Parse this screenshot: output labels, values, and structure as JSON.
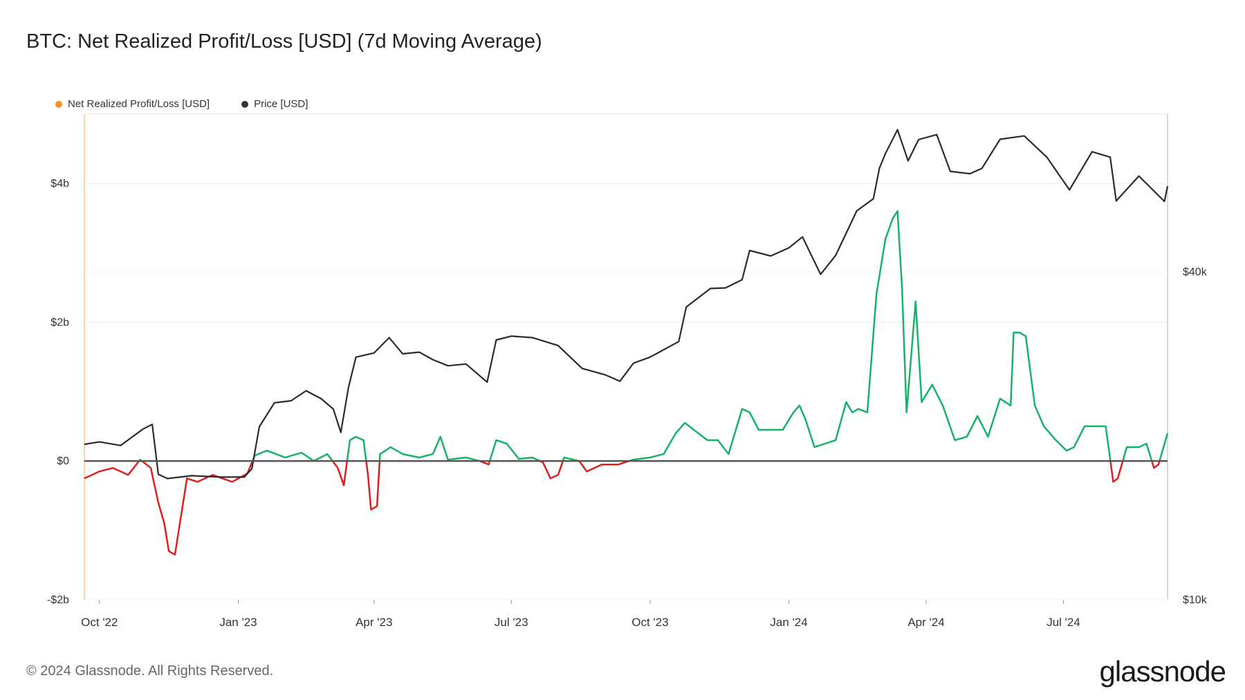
{
  "title": "BTC: Net Realized Profit/Loss [USD] (7d Moving Average)",
  "footer": "© 2024 Glassnode. All Rights Reserved.",
  "brand": "glassnode",
  "legend": [
    {
      "label": "Net Realized Profit/Loss [USD]",
      "color": "#f7931a"
    },
    {
      "label": "Price [USD]",
      "color": "#333333"
    }
  ],
  "chart_data": {
    "type": "line",
    "x_tick_labels": [
      "Oct '22",
      "Jan '23",
      "Apr '23",
      "Jul '23",
      "Oct '23",
      "Jan '24",
      "Apr '24",
      "Jul '24"
    ],
    "x_tick_dates": [
      "2022-10-01",
      "2023-01-01",
      "2023-04-01",
      "2023-07-01",
      "2023-10-01",
      "2024-01-01",
      "2024-04-01",
      "2024-07-01"
    ],
    "x_range": [
      "2022-09-21",
      "2024-09-08"
    ],
    "left_axis": {
      "ticks": [
        -2,
        0,
        2,
        4
      ],
      "tick_labels": [
        "-$2b",
        "$0",
        "$2b",
        "$4b"
      ],
      "range": [
        -2,
        5
      ]
    },
    "right_axis": {
      "scale": "log",
      "ticks": [
        10000,
        40000
      ],
      "tick_labels": [
        "$10k",
        "$40k"
      ],
      "range": [
        10000,
        78000
      ]
    },
    "colors": {
      "profit": "#17b26a",
      "loss": "#e01e1e",
      "price": "#2b2b2b",
      "zero_line": "#555555"
    },
    "series": [
      {
        "name": "Net Realized Profit/Loss [USD]",
        "unit": "billion USD",
        "points": [
          [
            "2022-09-21",
            -0.25
          ],
          [
            "2022-10-01",
            -0.15
          ],
          [
            "2022-10-10",
            -0.1
          ],
          [
            "2022-10-20",
            -0.2
          ],
          [
            "2022-10-28",
            0.02
          ],
          [
            "2022-11-04",
            -0.1
          ],
          [
            "2022-11-09",
            -0.6
          ],
          [
            "2022-11-13",
            -0.9
          ],
          [
            "2022-11-16",
            -1.3
          ],
          [
            "2022-11-20",
            -1.35
          ],
          [
            "2022-11-24",
            -0.8
          ],
          [
            "2022-11-28",
            -0.25
          ],
          [
            "2022-12-05",
            -0.3
          ],
          [
            "2022-12-15",
            -0.2
          ],
          [
            "2022-12-28",
            -0.3
          ],
          [
            "2023-01-07",
            -0.18
          ],
          [
            "2023-01-12",
            0.08
          ],
          [
            "2023-01-20",
            0.15
          ],
          [
            "2023-02-01",
            0.05
          ],
          [
            "2023-02-12",
            0.12
          ],
          [
            "2023-02-20",
            0.0
          ],
          [
            "2023-03-01",
            0.1
          ],
          [
            "2023-03-08",
            -0.1
          ],
          [
            "2023-03-12",
            -0.35
          ],
          [
            "2023-03-16",
            0.3
          ],
          [
            "2023-03-20",
            0.35
          ],
          [
            "2023-03-25",
            0.3
          ],
          [
            "2023-03-28",
            -0.2
          ],
          [
            "2023-03-30",
            -0.7
          ],
          [
            "2023-04-03",
            -0.65
          ],
          [
            "2023-04-05",
            0.1
          ],
          [
            "2023-04-12",
            0.2
          ],
          [
            "2023-04-20",
            0.1
          ],
          [
            "2023-05-01",
            0.05
          ],
          [
            "2023-05-10",
            0.1
          ],
          [
            "2023-05-15",
            0.35
          ],
          [
            "2023-05-20",
            0.02
          ],
          [
            "2023-06-01",
            0.05
          ],
          [
            "2023-06-10",
            0.0
          ],
          [
            "2023-06-16",
            -0.05
          ],
          [
            "2023-06-21",
            0.3
          ],
          [
            "2023-06-28",
            0.25
          ],
          [
            "2023-07-06",
            0.03
          ],
          [
            "2023-07-15",
            0.05
          ],
          [
            "2023-07-22",
            -0.02
          ],
          [
            "2023-07-27",
            -0.25
          ],
          [
            "2023-08-01",
            -0.2
          ],
          [
            "2023-08-05",
            0.05
          ],
          [
            "2023-08-15",
            0.0
          ],
          [
            "2023-08-20",
            -0.15
          ],
          [
            "2023-08-30",
            -0.05
          ],
          [
            "2023-09-10",
            -0.05
          ],
          [
            "2023-09-20",
            0.02
          ],
          [
            "2023-10-01",
            0.05
          ],
          [
            "2023-10-10",
            0.1
          ],
          [
            "2023-10-18",
            0.4
          ],
          [
            "2023-10-24",
            0.55
          ],
          [
            "2023-10-30",
            0.45
          ],
          [
            "2023-11-08",
            0.3
          ],
          [
            "2023-11-15",
            0.3
          ],
          [
            "2023-11-22",
            0.1
          ],
          [
            "2023-12-01",
            0.75
          ],
          [
            "2023-12-06",
            0.7
          ],
          [
            "2023-12-12",
            0.45
          ],
          [
            "2023-12-20",
            0.45
          ],
          [
            "2023-12-28",
            0.45
          ],
          [
            "2024-01-04",
            0.7
          ],
          [
            "2024-01-08",
            0.8
          ],
          [
            "2024-01-12",
            0.6
          ],
          [
            "2024-01-18",
            0.2
          ],
          [
            "2024-01-25",
            0.25
          ],
          [
            "2024-02-01",
            0.3
          ],
          [
            "2024-02-08",
            0.85
          ],
          [
            "2024-02-12",
            0.7
          ],
          [
            "2024-02-16",
            0.75
          ],
          [
            "2024-02-22",
            0.7
          ],
          [
            "2024-02-28",
            2.4
          ],
          [
            "2024-03-05",
            3.2
          ],
          [
            "2024-03-10",
            3.5
          ],
          [
            "2024-03-13",
            3.6
          ],
          [
            "2024-03-16",
            2.5
          ],
          [
            "2024-03-19",
            0.7
          ],
          [
            "2024-03-25",
            2.3
          ],
          [
            "2024-03-29",
            0.85
          ],
          [
            "2024-04-05",
            1.1
          ],
          [
            "2024-04-12",
            0.8
          ],
          [
            "2024-04-20",
            0.3
          ],
          [
            "2024-04-28",
            0.35
          ],
          [
            "2024-05-05",
            0.65
          ],
          [
            "2024-05-12",
            0.35
          ],
          [
            "2024-05-20",
            0.9
          ],
          [
            "2024-05-27",
            0.8
          ],
          [
            "2024-05-29",
            1.85
          ],
          [
            "2024-06-02",
            1.85
          ],
          [
            "2024-06-06",
            1.8
          ],
          [
            "2024-06-12",
            0.8
          ],
          [
            "2024-06-18",
            0.5
          ],
          [
            "2024-06-26",
            0.3
          ],
          [
            "2024-07-03",
            0.15
          ],
          [
            "2024-07-08",
            0.2
          ],
          [
            "2024-07-15",
            0.5
          ],
          [
            "2024-07-22",
            0.5
          ],
          [
            "2024-07-29",
            0.5
          ],
          [
            "2024-08-03",
            -0.3
          ],
          [
            "2024-08-06",
            -0.25
          ],
          [
            "2024-08-12",
            0.2
          ],
          [
            "2024-08-20",
            0.2
          ],
          [
            "2024-08-25",
            0.25
          ],
          [
            "2024-08-30",
            -0.1
          ],
          [
            "2024-09-02",
            -0.05
          ],
          [
            "2024-09-08",
            0.4
          ]
        ]
      },
      {
        "name": "Price [USD]",
        "unit": "USD",
        "points": [
          [
            "2022-09-21",
            19300
          ],
          [
            "2022-10-01",
            19500
          ],
          [
            "2022-10-15",
            19200
          ],
          [
            "2022-10-30",
            20600
          ],
          [
            "2022-11-05",
            21000
          ],
          [
            "2022-11-09",
            17000
          ],
          [
            "2022-11-15",
            16700
          ],
          [
            "2022-12-01",
            16900
          ],
          [
            "2022-12-20",
            16800
          ],
          [
            "2023-01-05",
            16800
          ],
          [
            "2023-01-10",
            17400
          ],
          [
            "2023-01-15",
            20800
          ],
          [
            "2023-01-25",
            23000
          ],
          [
            "2023-02-05",
            23200
          ],
          [
            "2023-02-15",
            24200
          ],
          [
            "2023-02-25",
            23400
          ],
          [
            "2023-03-05",
            22400
          ],
          [
            "2023-03-10",
            20300
          ],
          [
            "2023-03-15",
            24500
          ],
          [
            "2023-03-20",
            27900
          ],
          [
            "2023-04-01",
            28400
          ],
          [
            "2023-04-11",
            30300
          ],
          [
            "2023-04-20",
            28300
          ],
          [
            "2023-05-01",
            28500
          ],
          [
            "2023-05-10",
            27600
          ],
          [
            "2023-05-20",
            26900
          ],
          [
            "2023-06-01",
            27100
          ],
          [
            "2023-06-15",
            25100
          ],
          [
            "2023-06-21",
            30000
          ],
          [
            "2023-07-01",
            30500
          ],
          [
            "2023-07-15",
            30300
          ],
          [
            "2023-08-01",
            29300
          ],
          [
            "2023-08-17",
            26600
          ],
          [
            "2023-09-01",
            25900
          ],
          [
            "2023-09-11",
            25200
          ],
          [
            "2023-09-20",
            27200
          ],
          [
            "2023-10-01",
            27900
          ],
          [
            "2023-10-20",
            29800
          ],
          [
            "2023-10-25",
            34500
          ],
          [
            "2023-11-10",
            37300
          ],
          [
            "2023-11-20",
            37400
          ],
          [
            "2023-12-01",
            38700
          ],
          [
            "2023-12-06",
            43800
          ],
          [
            "2023-12-20",
            42800
          ],
          [
            "2024-01-01",
            44300
          ],
          [
            "2024-01-10",
            46400
          ],
          [
            "2024-01-22",
            39600
          ],
          [
            "2024-02-01",
            42900
          ],
          [
            "2024-02-15",
            51800
          ],
          [
            "2024-02-26",
            54500
          ],
          [
            "2024-03-01",
            62000
          ],
          [
            "2024-03-05",
            66000
          ],
          [
            "2024-03-13",
            73000
          ],
          [
            "2024-03-20",
            64000
          ],
          [
            "2024-03-27",
            70000
          ],
          [
            "2024-04-08",
            71500
          ],
          [
            "2024-04-17",
            61200
          ],
          [
            "2024-04-30",
            60600
          ],
          [
            "2024-05-08",
            62000
          ],
          [
            "2024-05-20",
            70100
          ],
          [
            "2024-06-05",
            71100
          ],
          [
            "2024-06-20",
            65000
          ],
          [
            "2024-07-05",
            56600
          ],
          [
            "2024-07-20",
            66500
          ],
          [
            "2024-08-01",
            65000
          ],
          [
            "2024-08-05",
            54000
          ],
          [
            "2024-08-20",
            60000
          ],
          [
            "2024-09-06",
            53900
          ],
          [
            "2024-09-08",
            57500
          ]
        ]
      }
    ]
  }
}
